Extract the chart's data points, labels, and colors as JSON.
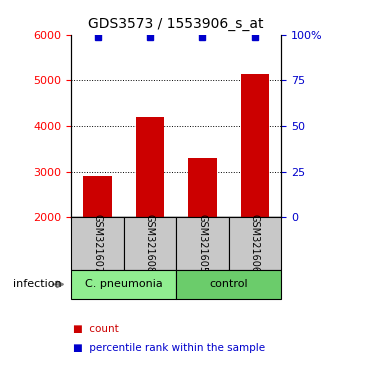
{
  "title": "GDS3573 / 1553906_s_at",
  "samples": [
    "GSM321607",
    "GSM321608",
    "GSM321605",
    "GSM321606"
  ],
  "counts": [
    2900,
    4200,
    3300,
    5150
  ],
  "percentiles": [
    99,
    99,
    99,
    99
  ],
  "group_spans": [
    [
      0,
      2,
      "C. pneumonia",
      "#90EE90"
    ],
    [
      2,
      4,
      "control",
      "#6BCC6B"
    ]
  ],
  "ylim_left": [
    2000,
    6000
  ],
  "ylim_right": [
    0,
    100
  ],
  "yticks_left": [
    2000,
    3000,
    4000,
    5000,
    6000
  ],
  "yticks_right": [
    0,
    25,
    50,
    75,
    100
  ],
  "ytick_right_labels": [
    "0",
    "25",
    "50",
    "75",
    "100%"
  ],
  "bar_color": "#CC0000",
  "percentile_color": "#0000CC",
  "sample_box_color": "#C8C8C8",
  "infection_label": "infection",
  "legend_count": "count",
  "legend_percentile": "percentile rank within the sample",
  "title_fontsize": 10,
  "tick_fontsize": 8,
  "sample_fontsize": 7,
  "group_fontsize": 8,
  "legend_fontsize": 7.5
}
